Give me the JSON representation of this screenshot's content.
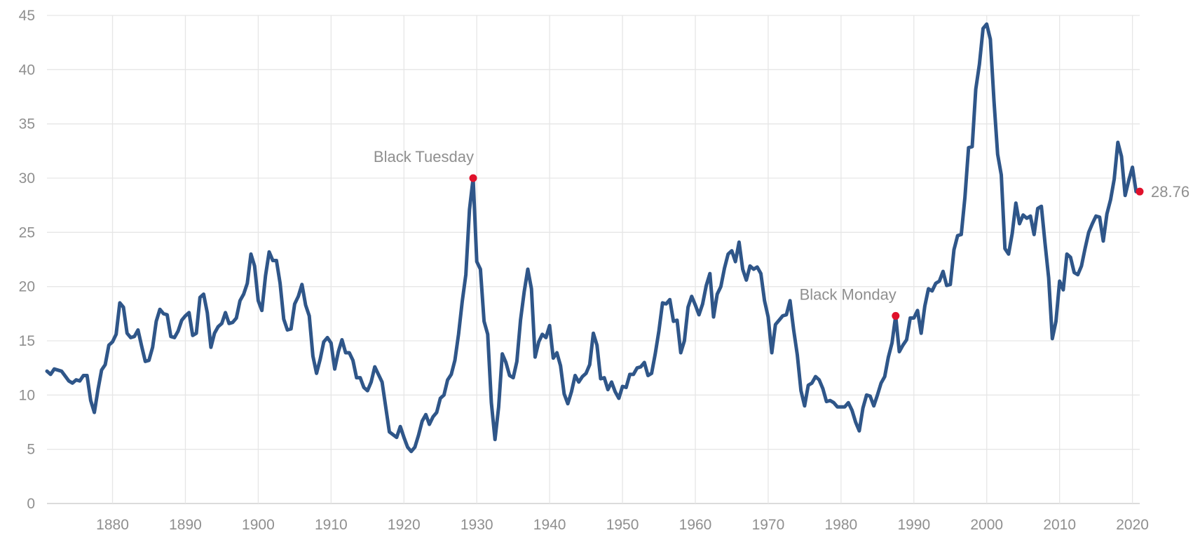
{
  "chart_data": {
    "type": "line",
    "title": "",
    "xlabel": "",
    "ylabel": "",
    "xlim": [
      1871,
      2021
    ],
    "ylim": [
      0,
      45
    ],
    "grid": true,
    "x_ticks": [
      1880,
      1890,
      1900,
      1910,
      1920,
      1930,
      1940,
      1950,
      1960,
      1970,
      1980,
      1990,
      2000,
      2010,
      2020
    ],
    "y_ticks": [
      0,
      5,
      10,
      15,
      20,
      25,
      30,
      35,
      40,
      45
    ],
    "colors": {
      "line": "#2f5689",
      "highlight": "#e0112b",
      "grid": "#e6e6e6",
      "text": "#8f8f8f"
    },
    "series": [
      {
        "x": [
          1871,
          1871.5,
          1872,
          1873,
          1874,
          1874.5,
          1875,
          1875.5,
          1876,
          1876.5,
          1877,
          1877.5,
          1878,
          1878.5,
          1879,
          1879.5,
          1880,
          1880.5,
          1881,
          1881.5,
          1882,
          1882.5,
          1883,
          1883.5,
          1884,
          1884.5,
          1885,
          1885.5,
          1886,
          1886.5,
          1887,
          1887.5,
          1888,
          1888.5,
          1889,
          1889.5,
          1890,
          1890.5,
          1891,
          1891.5,
          1892,
          1892.5,
          1893,
          1893.5,
          1894,
          1894.5,
          1895,
          1895.5,
          1896,
          1896.5,
          1897,
          1897.5,
          1898,
          1898.5,
          1899,
          1899.5,
          1900,
          1900.5,
          1901,
          1901.5,
          1902,
          1902.5,
          1903,
          1903.5,
          1904,
          1904.5,
          1905,
          1905.5,
          1906,
          1906.5,
          1907,
          1907.5,
          1908,
          1908.5,
          1909,
          1909.5,
          1910,
          1910.5,
          1911,
          1911.5,
          1912,
          1912.5,
          1913,
          1913.5,
          1914,
          1914.5,
          1915,
          1915.5,
          1916,
          1917,
          1918,
          1919,
          1919.5,
          1920,
          1920.5,
          1921,
          1921.5,
          1922,
          1922.5,
          1923,
          1923.5,
          1924,
          1924.5,
          1925,
          1925.5,
          1926,
          1926.5,
          1927,
          1927.5,
          1928,
          1928.5,
          1929,
          1929.5,
          1930,
          1930.5,
          1931,
          1931.5,
          1932,
          1932.5,
          1933,
          1933.5,
          1934,
          1934.5,
          1935,
          1935.5,
          1936,
          1936.5,
          1937,
          1937.5,
          1938,
          1938.5,
          1939,
          1939.5,
          1940,
          1940.5,
          1941,
          1941.5,
          1942,
          1942.5,
          1943,
          1943.5,
          1944,
          1944.5,
          1945,
          1945.5,
          1946,
          1946.5,
          1947,
          1947.5,
          1948,
          1948.5,
          1949,
          1949.5,
          1950,
          1950.5,
          1951,
          1951.5,
          1952,
          1952.5,
          1953,
          1953.5,
          1954,
          1954.5,
          1955,
          1955.5,
          1956,
          1956.5,
          1957,
          1957.5,
          1958,
          1958.5,
          1959,
          1959.5,
          1960,
          1960.5,
          1961,
          1961.5,
          1962,
          1962.5,
          1963,
          1963.5,
          1964,
          1964.5,
          1965,
          1965.5,
          1966,
          1966.5,
          1967,
          1967.5,
          1968,
          1968.5,
          1969,
          1969.5,
          1970,
          1970.5,
          1971,
          1971.5,
          1972,
          1972.5,
          1973,
          1973.5,
          1974,
          1974.5,
          1975,
          1975.5,
          1976,
          1976.5,
          1977,
          1977.5,
          1978,
          1978.5,
          1979,
          1979.5,
          1980,
          1980.5,
          1981,
          1981.5,
          1982,
          1982.5,
          1983,
          1983.5,
          1984,
          1984.5,
          1985,
          1985.5,
          1986,
          1986.5,
          1987,
          1987.5,
          1988,
          1988.5,
          1989,
          1989.5,
          1990,
          1990.5,
          1991,
          1991.5,
          1992,
          1992.5,
          1993,
          1993.5,
          1994,
          1994.5,
          1995,
          1995.5,
          1996,
          1996.5,
          1997,
          1997.5,
          1998,
          1998.5,
          1999,
          1999.5,
          2000,
          2000.5,
          2001,
          2001.5,
          2002,
          2002.5,
          2003,
          2003.5,
          2004,
          2004.5,
          2005,
          2005.5,
          2006,
          2006.5,
          2007,
          2007.5,
          2008,
          2008.5,
          2009,
          2009.5,
          2010,
          2010.5,
          2011,
          2011.5,
          2012,
          2012.5,
          2013,
          2013.5,
          2014,
          2014.5,
          2015,
          2015.5,
          2016,
          2016.5,
          2017,
          2017.5,
          2018,
          2018.5,
          2019,
          2019.5,
          2020,
          2020.5
        ],
        "y": [
          12.2,
          11.9,
          12.4,
          12.2,
          11.3,
          11.1,
          11.4,
          11.3,
          11.8,
          11.8,
          9.5,
          8.4,
          10.5,
          12.3,
          12.8,
          14.6,
          14.9,
          15.6,
          18.5,
          18.1,
          15.7,
          15.3,
          15.4,
          16,
          14.5,
          13.1,
          13.2,
          14.4,
          16.8,
          17.9,
          17.5,
          17.4,
          15.4,
          15.3,
          15.9,
          16.9,
          17.3,
          17.6,
          15.5,
          15.7,
          19,
          19.3,
          17.6,
          14.4,
          15.7,
          16.3,
          16.6,
          17.6,
          16.6,
          16.7,
          17.1,
          18.7,
          19.3,
          20.3,
          23,
          21.9,
          18.7,
          17.8,
          21,
          23.2,
          22.4,
          22.4,
          20.3,
          17,
          16,
          16.1,
          18.4,
          19.1,
          20.2,
          18.3,
          17.3,
          13.6,
          12,
          13.3,
          14.9,
          15.3,
          14.8,
          12.4,
          14,
          15.1,
          13.9,
          13.9,
          13.2,
          11.6,
          11.6,
          10.7,
          10.4,
          11.2,
          12.6,
          11.2,
          6.6,
          6.1,
          7.1,
          6.1,
          5.2,
          4.8,
          5.2,
          6.3,
          7.6,
          8.2,
          7.3,
          8,
          8.4,
          9.7,
          10,
          11.4,
          11.9,
          13.2,
          15.6,
          18.6,
          21.1,
          27.1,
          30,
          22.3,
          21.6,
          16.8,
          15.6,
          9.3,
          5.9,
          8.9,
          13.8,
          13,
          11.8,
          11.6,
          13.1,
          16.9,
          19.5,
          21.6,
          19.8,
          13.5,
          14.9,
          15.6,
          15.3,
          16.4,
          13.4,
          13.9,
          12.7,
          10.1,
          9.2,
          10.3,
          11.8,
          11.2,
          11.7,
          12,
          12.8,
          15.7,
          14.6,
          11.5,
          11.6,
          10.5,
          11.2,
          10.3,
          9.7,
          10.8,
          10.7,
          11.9,
          11.9,
          12.5,
          12.6,
          13,
          11.8,
          12,
          13.8,
          15.9,
          18.5,
          18.4,
          18.8,
          16.8,
          16.9,
          13.9,
          15,
          18.1,
          19.1,
          18.3,
          17.4,
          18.4,
          20.1,
          21.2,
          17.2,
          19.3,
          20,
          21.7,
          23,
          23.3,
          22.3,
          24.1,
          21.6,
          20.6,
          21.9,
          21.6,
          21.8,
          21.2,
          18.7,
          17.2,
          13.9,
          16.5,
          16.9,
          17.3,
          17.4,
          18.7,
          16,
          13.7,
          10.4,
          9,
          10.9,
          11.1,
          11.7,
          11.4,
          10.6,
          9.4,
          9.5,
          9.3,
          8.9,
          8.9,
          8.9,
          9.3,
          8.6,
          7.5,
          6.7,
          8.8,
          10,
          9.9,
          9,
          10,
          11.1,
          11.7,
          13.5,
          14.8,
          17.3,
          14,
          14.6,
          15.1,
          17.1,
          17.1,
          17.8,
          15.7,
          18.2,
          19.8,
          19.6,
          20.3,
          20.5,
          21.4,
          20.1,
          20.2,
          23.4,
          24.7,
          24.8,
          28.2,
          32.8,
          32.9,
          38.2,
          40.5,
          43.8,
          44.2,
          42.8,
          37.1,
          32.2,
          30.3,
          23.5,
          23,
          24.9,
          27.7,
          25.8,
          26.6,
          26.3,
          26.5,
          24.8,
          27.2,
          27.4,
          24,
          20.8,
          15.2,
          16.8,
          20.5,
          19.7,
          23,
          22.7,
          21.3,
          21.1,
          21.9,
          23.5,
          25,
          25.8,
          26.5,
          26.4,
          24.2,
          26.7,
          28,
          29.9,
          33.3,
          32,
          28.4,
          29.8,
          31,
          28.76
        ]
      }
    ],
    "highlights": [
      {
        "x": 1929.5,
        "y": 30,
        "label": "Black Tuesday"
      },
      {
        "x": 1987.5,
        "y": 17.3,
        "label": "Black Monday"
      },
      {
        "x": 2021,
        "y": 28.76,
        "label": "28.76"
      }
    ]
  }
}
